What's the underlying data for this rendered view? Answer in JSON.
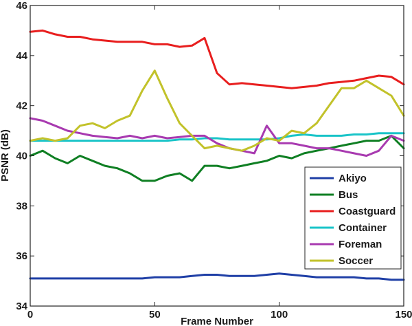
{
  "chart_data": {
    "type": "line",
    "title": "",
    "xlabel": "Frame Number",
    "ylabel": "PSNR (dB)",
    "xlim": [
      0,
      150
    ],
    "ylim": [
      34,
      46
    ],
    "xticks": [
      0,
      50,
      100,
      150
    ],
    "yticks": [
      34,
      36,
      38,
      40,
      42,
      44,
      46
    ],
    "grid": false,
    "legend_position": "bottom-right",
    "x": [
      0,
      5,
      10,
      15,
      20,
      25,
      30,
      35,
      40,
      45,
      50,
      55,
      60,
      65,
      70,
      75,
      80,
      85,
      90,
      95,
      100,
      105,
      110,
      115,
      120,
      125,
      130,
      135,
      140,
      145,
      150
    ],
    "series": [
      {
        "name": "Akiyo",
        "color": "#1f3fa6",
        "values": [
          35.1,
          35.1,
          35.1,
          35.1,
          35.1,
          35.1,
          35.1,
          35.1,
          35.1,
          35.1,
          35.15,
          35.15,
          35.15,
          35.2,
          35.25,
          35.25,
          35.2,
          35.2,
          35.2,
          35.25,
          35.3,
          35.25,
          35.2,
          35.15,
          35.15,
          35.15,
          35.15,
          35.1,
          35.1,
          35.05,
          35.05
        ]
      },
      {
        "name": "Bus",
        "color": "#0f7f23",
        "values": [
          40.0,
          40.2,
          39.9,
          39.7,
          40.0,
          39.8,
          39.6,
          39.5,
          39.3,
          39.0,
          39.0,
          39.2,
          39.3,
          39.0,
          39.6,
          39.6,
          39.5,
          39.6,
          39.7,
          39.8,
          40.0,
          39.9,
          40.1,
          40.2,
          40.3,
          40.4,
          40.5,
          40.6,
          40.6,
          40.8,
          40.3
        ]
      },
      {
        "name": "Coastguard",
        "color": "#e81e1e",
        "values": [
          44.95,
          45.0,
          44.85,
          44.75,
          44.75,
          44.65,
          44.6,
          44.55,
          44.55,
          44.55,
          44.45,
          44.45,
          44.35,
          44.4,
          44.7,
          43.3,
          42.85,
          42.9,
          42.85,
          42.8,
          42.75,
          42.7,
          42.75,
          42.8,
          42.9,
          42.95,
          43.0,
          43.1,
          43.2,
          43.15,
          42.85
        ]
      },
      {
        "name": "Container",
        "color": "#19c4c8",
        "values": [
          40.6,
          40.6,
          40.6,
          40.6,
          40.6,
          40.6,
          40.6,
          40.6,
          40.6,
          40.6,
          40.6,
          40.6,
          40.65,
          40.65,
          40.7,
          40.7,
          40.65,
          40.65,
          40.65,
          40.65,
          40.7,
          40.8,
          40.85,
          40.8,
          40.8,
          40.8,
          40.85,
          40.85,
          40.9,
          40.9,
          40.9
        ]
      },
      {
        "name": "Foreman",
        "color": "#a83ab0",
        "values": [
          41.5,
          41.4,
          41.2,
          41.0,
          40.9,
          40.8,
          40.75,
          40.7,
          40.8,
          40.7,
          40.8,
          40.7,
          40.75,
          40.8,
          40.8,
          40.5,
          40.3,
          40.2,
          40.1,
          41.2,
          40.5,
          40.5,
          40.4,
          40.3,
          40.3,
          40.2,
          40.1,
          40.0,
          40.2,
          40.8,
          40.6
        ]
      },
      {
        "name": "Soccer",
        "color": "#c2c22a",
        "values": [
          40.6,
          40.7,
          40.6,
          40.7,
          41.2,
          41.3,
          41.1,
          41.4,
          41.6,
          42.6,
          43.4,
          42.3,
          41.3,
          40.8,
          40.3,
          40.4,
          40.3,
          40.2,
          40.4,
          40.7,
          40.6,
          41.0,
          40.9,
          41.3,
          42.0,
          42.7,
          42.7,
          43.0,
          42.7,
          42.4,
          41.6
        ]
      }
    ]
  }
}
